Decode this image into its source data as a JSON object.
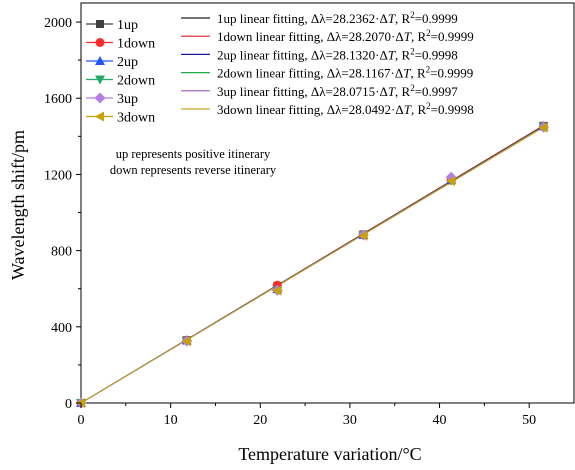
{
  "chart_data": {
    "type": "scatter",
    "xlabel": "Temperature variation/°C",
    "ylabel": "Wavelength shift/pm",
    "xlim": [
      0,
      55
    ],
    "ylim": [
      0,
      2100
    ],
    "xticks": [
      0,
      10,
      20,
      30,
      40,
      50
    ],
    "yticks": [
      0,
      400,
      800,
      1200,
      1600,
      2000
    ],
    "x": [
      0,
      11.8,
      21.9,
      31.5,
      41.3,
      51.6
    ],
    "grid": false,
    "legend_position": "top-left",
    "series": [
      {
        "name": "1up",
        "marker": "square",
        "color": "#404040",
        "values": [
          0,
          330,
          615,
          885,
          1170,
          1455
        ]
      },
      {
        "name": "1down",
        "marker": "circle",
        "color": "#ff2a2a",
        "values": [
          0,
          330,
          618,
          884,
          1170,
          1453
        ]
      },
      {
        "name": "2up",
        "marker": "triangle-up",
        "color": "#2255ff",
        "values": [
          0,
          328,
          598,
          882,
          1172,
          1452
        ]
      },
      {
        "name": "2down",
        "marker": "triangle-down",
        "color": "#22aa66",
        "values": [
          0,
          326,
          590,
          880,
          1168,
          1450
        ]
      },
      {
        "name": "3up",
        "marker": "diamond",
        "color": "#b47ee6",
        "values": [
          0,
          325,
          592,
          882,
          1185,
          1448
        ]
      },
      {
        "name": "3down",
        "marker": "triangle-left",
        "color": "#c9a200",
        "values": [
          0,
          324,
          590,
          878,
          1165,
          1445
        ]
      }
    ],
    "fits": [
      {
        "label": "1up  linear fitting, ",
        "slope_text": "Δλ=28.2362·Δ",
        "var": "T",
        "r2_text": ", R",
        "sup": "2",
        "r2_val": "=0.9999",
        "slope": 28.2362,
        "color": "#222222"
      },
      {
        "label": "1down  linear fitting, ",
        "slope_text": "Δλ=28.2070·Δ",
        "var": "T",
        "r2_text": ", R",
        "sup": "2",
        "r2_val": "=0.9999",
        "slope": 28.207,
        "color": "#e02020"
      },
      {
        "label": "2up  linear fitting, ",
        "slope_text": "Δλ=28.1320·Δ",
        "var": "T",
        "r2_text": ", R",
        "sup": "2",
        "r2_val": "=0.9998",
        "slope": 28.132,
        "color": "#1a1aaa"
      },
      {
        "label": "2down linear fitting, ",
        "slope_text": "Δλ=28.1167·Δ",
        "var": "T",
        "r2_text": ", R",
        "sup": "2",
        "r2_val": "=0.9999",
        "slope": 28.1167,
        "color": "#22aa44"
      },
      {
        "label": "3up  linear fitting, ",
        "slope_text": "Δλ=28.0715·Δ",
        "var": "T",
        "r2_text": ", R",
        "sup": "2",
        "r2_val": "=0.9997",
        "slope": 28.0715,
        "color": "#9b59b6"
      },
      {
        "label": "3down  linear fitting, ",
        "slope_text": "Δλ=28.0492·Δ",
        "var": "T",
        "r2_text": ", R",
        "sup": "2",
        "r2_val": "=0.9998",
        "slope": 28.0492,
        "color": "#c9a227"
      }
    ],
    "annotations": [
      "up represents  positive itinerary",
      "down represents  reverse itinerary"
    ]
  }
}
